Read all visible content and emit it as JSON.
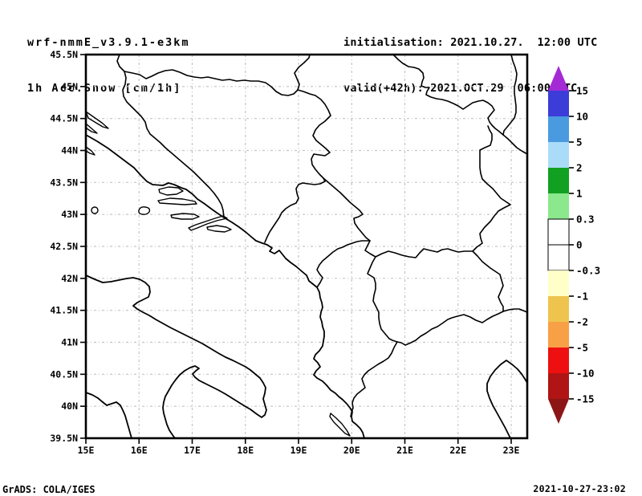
{
  "header": {
    "model": "wrf-nmmE_v3.9.1-e3km",
    "field": "1h Acc.Snow [cm/1h]",
    "init_label": "initialisation: 2021.10.27.  12:00 UTC",
    "valid_label": "valid(+42h): 2021.OCT.29  06:00 UTC"
  },
  "footer": {
    "left": "GrADS: COLA/IGES",
    "right": "2021-10-27-23:02"
  },
  "chart_data": {
    "type": "map",
    "title": "1h Acc.Snow [cm/1h]",
    "region": "Balkans / Adriatic",
    "x_axis": {
      "tick_labels": [
        "15E",
        "16E",
        "17E",
        "18E",
        "19E",
        "20E",
        "21E",
        "22E",
        "23E"
      ],
      "lon_min": 15,
      "lon_max": 23.35
    },
    "y_axis": {
      "tick_labels": [
        "45.5N",
        "45N",
        "44.5N",
        "44N",
        "43.5N",
        "43N",
        "42.5N",
        "42N",
        "41.5N",
        "41N",
        "40.5N",
        "40N",
        "39.5N"
      ],
      "lat_min": 39.5,
      "lat_max": 45.5
    },
    "grid": "on",
    "legend_position": "right"
  },
  "colorbar": {
    "tick_labels": [
      "15",
      "10",
      "5",
      "2",
      "1",
      "0.3",
      "0",
      "-0.3",
      "-1",
      "-2",
      "-5",
      "-10",
      "-15"
    ],
    "segment_colors_top_to_bottom": [
      "#3c3cd8",
      "#4a9ae0",
      "#aadcfa",
      "#12a022",
      "#8ce88c",
      "#ffffff",
      "#ffffff",
      "#ffffc8",
      "#eec44e",
      "#f8a045",
      "#ee1010",
      "#b01414"
    ],
    "arrow_top_color": "#a42ad6",
    "arrow_bottom_color": "#8c1616"
  },
  "colors": {
    "grid_line": "#c3c3c3",
    "map_line": "#000000",
    "background": "#ffffff",
    "text": "#000000"
  }
}
